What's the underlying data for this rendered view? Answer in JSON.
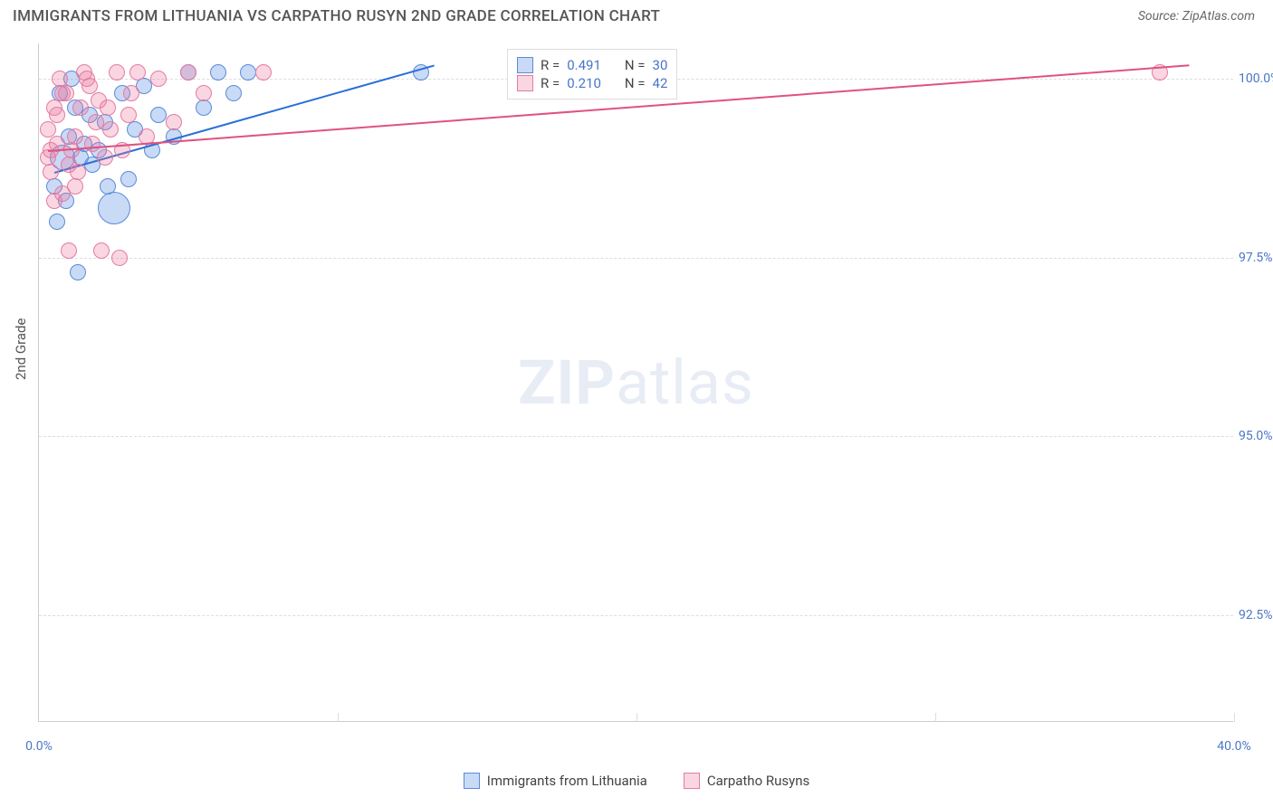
{
  "chart": {
    "title": "IMMIGRANTS FROM LITHUANIA VS CARPATHO RUSYN 2ND GRADE CORRELATION CHART",
    "source_label": "Source: ZipAtlas.com",
    "y_axis_label": "2nd Grade",
    "watermark_bold": "ZIP",
    "watermark_light": "atlas",
    "type": "scatter-correlation",
    "background_color": "#ffffff",
    "grid_color": "#dddddd",
    "axis_color": "#cccccc",
    "tick_label_color": "#4a76c7",
    "title_color": "#555555",
    "title_fontsize": 17,
    "label_fontsize": 15,
    "tick_fontsize": 14,
    "xlim": [
      0,
      40
    ],
    "ylim": [
      91,
      100.5
    ],
    "x_ticks": [
      0,
      10,
      20,
      30,
      40
    ],
    "x_tick_labels": [
      "0.0%",
      "",
      "",
      "",
      "40.0%"
    ],
    "y_ticks": [
      92.5,
      95.0,
      97.5,
      100.0
    ],
    "y_tick_labels": [
      "92.5%",
      "95.0%",
      "97.5%",
      "100.0%"
    ],
    "series": [
      {
        "name": "Immigrants from Lithuania",
        "color_fill": "rgba(100,150,230,0.35)",
        "color_stroke": "#5a8bd8",
        "trend_color": "#2a6fd6",
        "R": "0.491",
        "N": "30",
        "trend_line": {
          "x1": 0.5,
          "y1": 98.7,
          "x2": 13.2,
          "y2": 100.2
        },
        "marker_radius": 9,
        "points": [
          {
            "x": 0.5,
            "y": 98.5
          },
          {
            "x": 0.8,
            "y": 98.9,
            "r": 14
          },
          {
            "x": 1.0,
            "y": 99.2
          },
          {
            "x": 1.2,
            "y": 99.6
          },
          {
            "x": 1.5,
            "y": 99.1
          },
          {
            "x": 1.8,
            "y": 98.8
          },
          {
            "x": 2.0,
            "y": 99.0
          },
          {
            "x": 2.2,
            "y": 99.4
          },
          {
            "x": 2.5,
            "y": 98.2,
            "r": 18
          },
          {
            "x": 2.8,
            "y": 99.8
          },
          {
            "x": 3.0,
            "y": 98.6
          },
          {
            "x": 3.2,
            "y": 99.3
          },
          {
            "x": 3.5,
            "y": 99.9
          },
          {
            "x": 3.8,
            "y": 99.0
          },
          {
            "x": 4.0,
            "y": 99.5
          },
          {
            "x": 4.5,
            "y": 99.2
          },
          {
            "x": 5.0,
            "y": 100.1
          },
          {
            "x": 5.5,
            "y": 99.6
          },
          {
            "x": 6.0,
            "y": 100.1
          },
          {
            "x": 6.5,
            "y": 99.8
          },
          {
            "x": 7.0,
            "y": 100.1
          },
          {
            "x": 1.3,
            "y": 97.3
          },
          {
            "x": 0.6,
            "y": 98.0
          },
          {
            "x": 0.9,
            "y": 98.3
          },
          {
            "x": 1.4,
            "y": 98.9
          },
          {
            "x": 2.3,
            "y": 98.5
          },
          {
            "x": 1.7,
            "y": 99.5
          },
          {
            "x": 12.8,
            "y": 100.1
          },
          {
            "x": 0.7,
            "y": 99.8
          },
          {
            "x": 1.1,
            "y": 100.0
          }
        ]
      },
      {
        "name": "Carpatho Rusyns",
        "color_fill": "rgba(235,120,160,0.30)",
        "color_stroke": "#e57ba0",
        "trend_color": "#e0527f",
        "R": "0.210",
        "N": "42",
        "trend_line": {
          "x1": 0.3,
          "y1": 99.0,
          "x2": 38.5,
          "y2": 100.2
        },
        "marker_radius": 9,
        "points": [
          {
            "x": 0.4,
            "y": 99.0
          },
          {
            "x": 0.6,
            "y": 99.5
          },
          {
            "x": 0.8,
            "y": 99.8
          },
          {
            "x": 1.0,
            "y": 98.8
          },
          {
            "x": 1.2,
            "y": 99.2
          },
          {
            "x": 1.4,
            "y": 99.6
          },
          {
            "x": 1.6,
            "y": 100.0
          },
          {
            "x": 1.8,
            "y": 99.1
          },
          {
            "x": 2.0,
            "y": 99.7
          },
          {
            "x": 2.2,
            "y": 98.9
          },
          {
            "x": 2.4,
            "y": 99.3
          },
          {
            "x": 2.6,
            "y": 100.1
          },
          {
            "x": 2.8,
            "y": 99.0
          },
          {
            "x": 3.0,
            "y": 99.5
          },
          {
            "x": 3.3,
            "y": 100.1
          },
          {
            "x": 3.6,
            "y": 99.2
          },
          {
            "x": 4.0,
            "y": 100.0
          },
          {
            "x": 4.5,
            "y": 99.4
          },
          {
            "x": 5.0,
            "y": 100.1
          },
          {
            "x": 5.5,
            "y": 99.8
          },
          {
            "x": 7.5,
            "y": 100.1
          },
          {
            "x": 1.2,
            "y": 98.5
          },
          {
            "x": 0.5,
            "y": 98.3
          },
          {
            "x": 0.9,
            "y": 99.8
          },
          {
            "x": 1.5,
            "y": 100.1
          },
          {
            "x": 1.9,
            "y": 99.4
          },
          {
            "x": 0.7,
            "y": 100.0
          },
          {
            "x": 2.1,
            "y": 97.6
          },
          {
            "x": 2.7,
            "y": 97.5
          },
          {
            "x": 0.3,
            "y": 99.3
          },
          {
            "x": 1.1,
            "y": 99.0
          },
          {
            "x": 1.3,
            "y": 98.7
          },
          {
            "x": 0.4,
            "y": 98.7
          },
          {
            "x": 0.6,
            "y": 99.1
          },
          {
            "x": 1.7,
            "y": 99.9
          },
          {
            "x": 2.3,
            "y": 99.6
          },
          {
            "x": 3.1,
            "y": 99.8
          },
          {
            "x": 0.8,
            "y": 98.4
          },
          {
            "x": 1.0,
            "y": 97.6
          },
          {
            "x": 0.5,
            "y": 99.6
          },
          {
            "x": 37.5,
            "y": 100.1
          },
          {
            "x": 0.3,
            "y": 98.9
          }
        ]
      }
    ],
    "legend_top": {
      "r_label": "R =",
      "n_label": "N ="
    }
  }
}
